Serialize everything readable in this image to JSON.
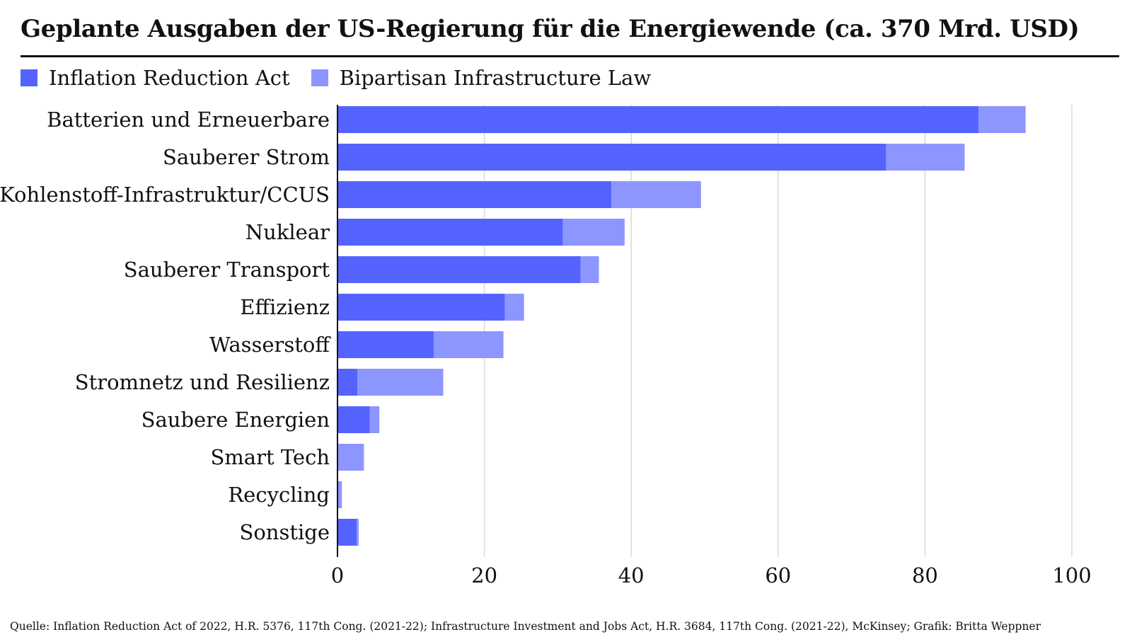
{
  "title": "Geplante Ausgaben der US-Regierung für die Energiewende (ca. 370 Mrd. USD)",
  "source": "Quelle: Inflation Reduction Act of 2022, H.R. 5376, 117th Cong. (2021-22); Infrastructure Investment and Jobs Act, H.R. 3684, 117th Cong. (2021-22), McKinsey; Grafik: Britta Weppner",
  "colors": {
    "ira": "#5563fe",
    "bil": "#8d96fe",
    "grid": "#d9d9d9",
    "axis": "#111111"
  },
  "legend": [
    {
      "label": "Inflation Reduction Act",
      "color": "#5563fe"
    },
    {
      "label": "Bipartisan Infrastructure Law",
      "color": "#8d96fe"
    }
  ],
  "chart_data": {
    "type": "bar",
    "orientation": "horizontal",
    "stacked": true,
    "categories": [
      "Batterien und Erneuerbare",
      "Sauberer Strom",
      "Kohlenstoff-Infrastruktur/CCUS",
      "Nuklear",
      "Sauberer Transport",
      "Effizienz",
      "Wasserstoff",
      "Stromnetz und Resilienz",
      "Saubere Energien",
      "Smart Tech",
      "Recycling",
      "Sonstige"
    ],
    "series": [
      {
        "name": "Inflation Reduction Act",
        "values": [
          87.3,
          74.7,
          37.3,
          30.7,
          33.1,
          22.8,
          13.1,
          2.7,
          4.4,
          0,
          0,
          2.6
        ]
      },
      {
        "name": "Bipartisan Infrastructure Law",
        "values": [
          6.4,
          10.7,
          12.2,
          8.4,
          2.5,
          2.6,
          9.5,
          11.7,
          1.3,
          3.6,
          0.6,
          0.3
        ]
      }
    ],
    "xlim": [
      0,
      100
    ],
    "xticks": [
      0,
      20,
      40,
      60,
      80,
      100
    ],
    "grid": true,
    "legend_position": "top-left"
  }
}
